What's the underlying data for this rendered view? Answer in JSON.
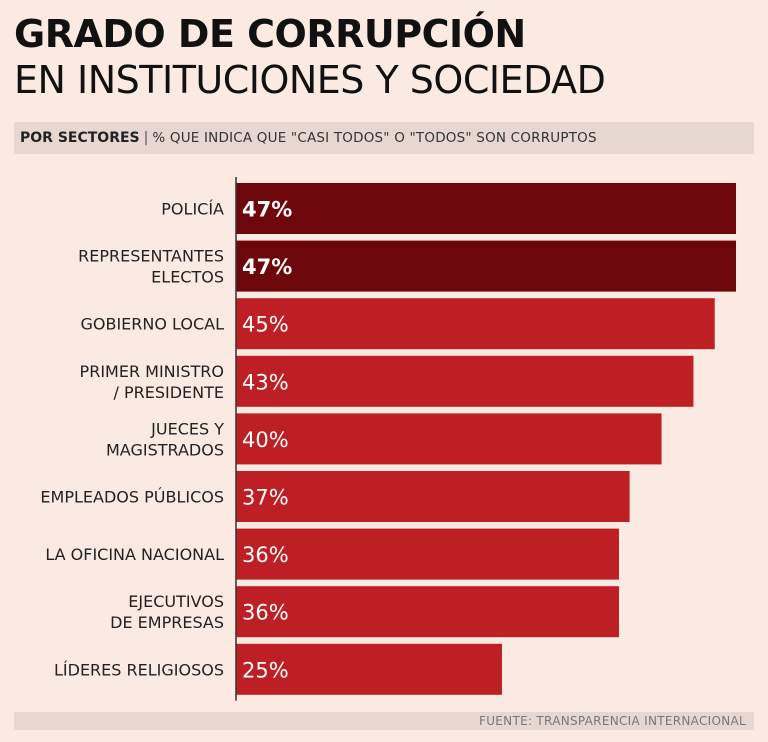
{
  "header": {
    "title_line1": "GRADO DE CORRUPCIÓN",
    "title_line2": "EN INSTITUCIONES Y SOCIEDAD"
  },
  "subtitle": {
    "label": "POR SECTORES",
    "separator": "|",
    "description": "% QUE INDICA QUE \"CASI TODOS\" O \"TODOS\" SON CORRUPTOS"
  },
  "footer": {
    "source": "FUENTE: TRANSPARENCIA  INTERNACIONAL"
  },
  "colors": {
    "background": "#fbeae2",
    "bar_top": "#6e070b",
    "bar": "#be1f25",
    "axis": "#333333"
  },
  "chart_data": {
    "type": "bar",
    "orientation": "horizontal",
    "title": "GRADO DE CORRUPCIÓN EN INSTITUCIONES Y SOCIEDAD",
    "subtitle": "POR SECTORES | % QUE INDICA QUE \"CASI TODOS\" O \"TODOS\" SON CORRUPTOS",
    "unit": "%",
    "categories": [
      [
        "POLICÍA"
      ],
      [
        "REPRESENTANTES",
        "ELECTOS"
      ],
      [
        "GOBIERNO LOCAL"
      ],
      [
        "PRIMER MINISTRO",
        "/ PRESIDENTE"
      ],
      [
        "JUECES Y",
        "MAGISTRADOS"
      ],
      [
        "EMPLEADOS PÚBLICOS"
      ],
      [
        "LA OFICINA NACIONAL"
      ],
      [
        "EJECUTIVOS",
        "DE EMPRESAS"
      ],
      [
        "LÍDERES RELIGIOSOS"
      ]
    ],
    "values": [
      47,
      47,
      45,
      43,
      40,
      37,
      36,
      36,
      25
    ],
    "data_labels": [
      "47%",
      "47%",
      "45%",
      "43%",
      "40%",
      "37%",
      "36%",
      "36%",
      "25%"
    ],
    "highlighted": [
      true,
      true,
      false,
      false,
      false,
      false,
      false,
      false,
      false
    ],
    "xlim": [
      0,
      47
    ],
    "grid": false,
    "legend": "none"
  }
}
